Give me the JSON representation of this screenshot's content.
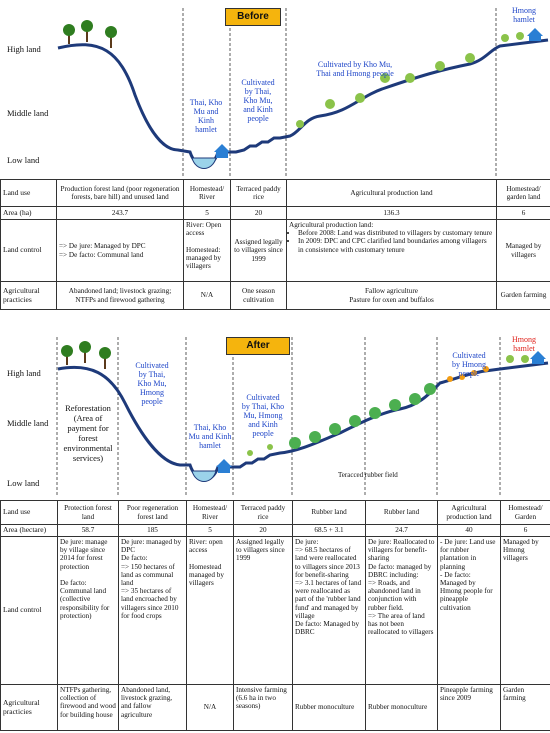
{
  "axis_labels": {
    "high": "High land",
    "middle": "Middle land",
    "low": "Low land"
  },
  "before": {
    "title": "Before",
    "labels": {
      "hmong_hamlet": [
        "Hmong",
        "hamlet"
      ],
      "cultivated_upland": [
        "Cultivated by Kho Mu,",
        "Thai and Hmong people"
      ],
      "cultivated_terrace": [
        "Cultivated",
        "by Thai,",
        "Kho Mu,",
        "and Kinh",
        "people"
      ],
      "thai_hamlet": [
        "Thai, Kho",
        "Mu and",
        "Kinh",
        "hamlet"
      ]
    },
    "row_headers": {
      "land_use": "Land use",
      "area": "Area (ha)",
      "control": "Land control",
      "practices": "Agricultural practicies"
    },
    "columns": [
      {
        "land_use": "Production forest land (poor regeneration forests, bare hill) and unused land",
        "area": "243.7",
        "control": [
          "=> De jure: Managed by DPC",
          "=> De facto: Communal land"
        ],
        "practices": "Abandoned land; livestock grazing; NTFPs and firewood gathering"
      },
      {
        "land_use": "Homestead/ River",
        "area": "5",
        "control": [
          "River: Open access",
          "Homestead: managed by villagers"
        ],
        "practices": "N/A"
      },
      {
        "land_use": "Terraced paddy rice",
        "area": "20",
        "control": [
          "Assigned legally to villagers since 1999"
        ],
        "practices": "One season cultivation"
      },
      {
        "land_use": "Agricultural production land",
        "area": "136.3",
        "control": [
          "Agricultural production land:",
          "Before 2008: Land was distributed to villagers by customary tenure",
          "In 2009: DPC and CPC clarified land boundaries among villagers in consistence with customary tenure"
        ],
        "practices": "Fallow agriculture\nPasture for oxen and buffalos"
      },
      {
        "land_use": "Homestead/ garden land",
        "area": "6",
        "control": [
          "Managed by villagers"
        ],
        "practices": "Garden farming"
      }
    ]
  },
  "after": {
    "title": "After",
    "labels": {
      "reforestation": [
        "Reforestation",
        "(Area of",
        "payment for",
        "forest",
        "environmental",
        "services)"
      ],
      "cultivated_forest": [
        "Cultivated",
        "by Thai,",
        "Kho Mu,",
        "Hmong",
        "people"
      ],
      "thai_hamlet": [
        "Thai, Kho",
        "Mu and Kinh",
        "hamlet"
      ],
      "cultivated_terrace": [
        "Cultivated",
        "by Thai, Kho",
        "Mu, Hmong",
        "and Kinh",
        "people"
      ],
      "terraced_rubber": "Teracced rubber field",
      "cultivated_hmong": [
        "Cultivated",
        "by Hmong",
        "people"
      ],
      "hmong_hamlet": [
        "Hmong",
        "hamlet"
      ]
    },
    "row_headers": {
      "land_use": "Land use",
      "area": "Area (hectare)",
      "control": "Land control",
      "practices": "Agricultural practicies"
    },
    "columns": [
      {
        "land_use": "Protection forest land",
        "area": "58.7",
        "control": [
          "De jure: manage by village since 2014 for forest protection",
          "De facto: Communal land (collective responsibility for protection)"
        ],
        "practices": "NTFPs gathering, collection of firewood and wood for building house"
      },
      {
        "land_use": "Poor regeneration forest land",
        "area": "185",
        "control": [
          "De jure: managed by DPC",
          "De facto:",
          "=> 150 hectares of land as communal land",
          "=> 35 hectares of land encroached by villagers since 2010 for food crops"
        ],
        "practices": "Abandoned land, livestock grazing, and fallow agriculture"
      },
      {
        "land_use": "Homestead/ River",
        "area": "5",
        "control": [
          "River: open access",
          "Homestead managed by villagers"
        ],
        "practices": "N/A"
      },
      {
        "land_use": "Terraced paddy rice",
        "area": "20",
        "control": [
          "Assigned legally to villagers since 1999"
        ],
        "practices": "Intensive farming (6.6 ha in two seasons)"
      },
      {
        "land_use": "Rubber land",
        "area": "68.5 + 3.1",
        "control": [
          "De jure:",
          "=> 68.5 hectares of land were reallocated to villagers since 2013 for benefit-sharing",
          "=> 3.1 hectares of land were reallocated as part of the 'rubber land fund' and managed by village",
          "De facto: Managed by DBRC"
        ],
        "practices": "Rubber monoculture"
      },
      {
        "land_use": "Rubber land",
        "area": "24.7",
        "control": [
          "De jure: Reallocated to villagers for benefit-sharing",
          "De facto: managed by DBRC including:",
          "=> Roads, and abandoned land in conjunction with rubber field.",
          "=> The area of land has not been reallocated to villagers"
        ],
        "practices": "Rubber monoculture"
      },
      {
        "land_use": "Agricultural production land",
        "area": "40",
        "control": [
          "- De jure: Land use for rubber plantation in planning",
          "- De facto: Managed by Hmong people for pineapple cultivation"
        ],
        "practices": "Pineapple farming since 2009"
      },
      {
        "land_use": "Homestead/ Garden",
        "area": "6",
        "control": [
          "Managed by Hmong villagers"
        ],
        "practices": "Garden farming"
      }
    ]
  }
}
